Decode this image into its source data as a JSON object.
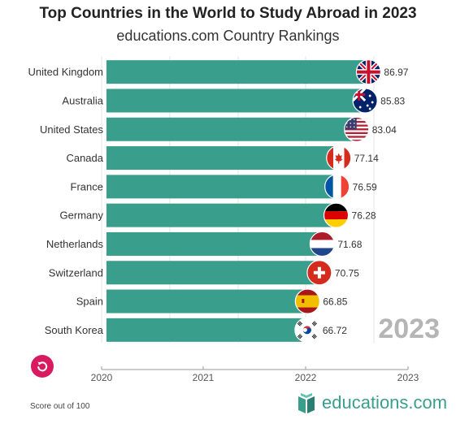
{
  "header": {
    "title": "Top Countries in the World to Study Abroad in 2023",
    "subtitle": "educations.com Country Rankings"
  },
  "chart_data": {
    "type": "bar",
    "orientation": "horizontal",
    "categories": [
      "United Kingdom",
      "Australia",
      "United States",
      "Canada",
      "France",
      "Germany",
      "Netherlands",
      "Switzerland",
      "Spain",
      "South Korea"
    ],
    "values": [
      86.97,
      85.83,
      83.04,
      77.14,
      76.59,
      76.28,
      71.68,
      70.75,
      66.85,
      66.72
    ],
    "flag_icons": [
      "uk-flag-icon",
      "australia-flag-icon",
      "us-flag-icon",
      "canada-flag-icon",
      "france-flag-icon",
      "germany-flag-icon",
      "netherlands-flag-icon",
      "switzerland-flag-icon",
      "spain-flag-icon",
      "south-korea-flag-icon"
    ],
    "bar_color": "#3a9e8c",
    "year_label": "2023",
    "timeline": {
      "ticks": [
        "2020",
        "2021",
        "2022",
        "2023"
      ],
      "current": "2023"
    },
    "grid": true,
    "xlim": [
      0,
      100
    ]
  },
  "footer": {
    "note": "Score out of 100",
    "logo_text": "educations.com",
    "replay_icon": "replay-icon"
  }
}
